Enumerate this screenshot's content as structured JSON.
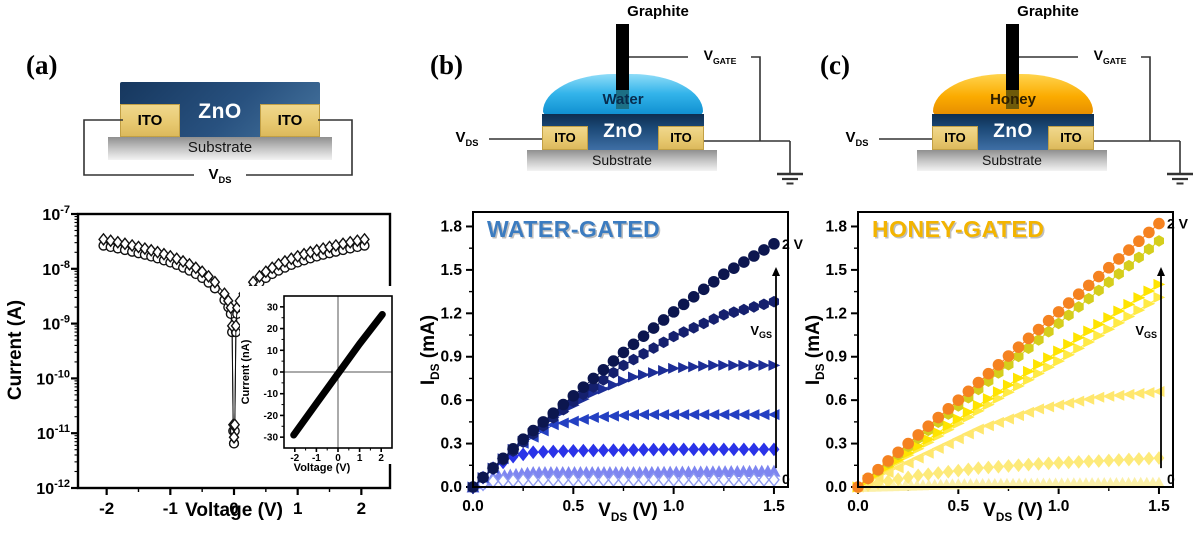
{
  "panels": {
    "a": {
      "label": "(a)",
      "schematic": {
        "zno": "ZnO",
        "ito_left": "ITO",
        "ito_right": "ITO",
        "substrate": "Substrate",
        "vds": {
          "pre": "V",
          "sub": "DS",
          "post": ""
        }
      },
      "axis": {
        "x": "Voltage (V)",
        "y": "Current (A)"
      },
      "inset_axis": {
        "x": "Voltage (V)",
        "y": "Current (nA)"
      }
    },
    "b": {
      "label": "(b)",
      "schematic": {
        "graphite": "Graphite",
        "liquid": "Water",
        "zno": "ZnO",
        "ito_left": "ITO",
        "ito_right": "ITO",
        "substrate": "Substrate",
        "vds": {
          "pre": "V",
          "sub": "DS",
          "post": ""
        },
        "vgate": {
          "pre": "V",
          "sub": "GATE",
          "post": ""
        }
      },
      "axis": {
        "x": {
          "pre": "V",
          "sub": "DS",
          "post": " (V)"
        },
        "y": {
          "pre": "I",
          "sub": "DS",
          "post": " (mA)"
        }
      }
    },
    "c": {
      "label": "(c)",
      "schematic": {
        "graphite": "Graphite",
        "liquid": "Honey",
        "zno": "ZnO",
        "ito_left": "ITO",
        "ito_right": "ITO",
        "substrate": "Substrate",
        "vds": {
          "pre": "V",
          "sub": "DS",
          "post": ""
        },
        "vgate": {
          "pre": "V",
          "sub": "GATE",
          "post": ""
        }
      },
      "axis": {
        "x": {
          "pre": "V",
          "sub": "DS",
          "post": " (V)"
        },
        "y": {
          "pre": "I",
          "sub": "DS",
          "post": " (mA)"
        }
      }
    }
  },
  "chart_data": {
    "a_main": {
      "type": "scatter",
      "xlabel": "Voltage (V)",
      "ylabel": "Current (A)",
      "x_ticks": [
        -2,
        -1,
        0,
        1,
        2
      ],
      "x_minor": [
        -1.5,
        -0.5,
        0.5,
        1.5
      ],
      "xlim": [
        -2.45,
        2.45
      ],
      "y_scale": "log",
      "y_decades": [
        -7,
        -8,
        -9,
        -10,
        -11,
        -12
      ],
      "symmetric_branch_V_vs_A": [
        [
          0.0,
          6.5e-12
        ],
        [
          0.012,
          1.1e-11
        ],
        [
          0.03,
          7e-10
        ],
        [
          0.05,
          1.5e-09
        ],
        [
          0.09,
          2e-09
        ],
        [
          0.15,
          2.7e-09
        ],
        [
          0.3,
          4.4e-09
        ],
        [
          0.5,
          6.8e-09
        ],
        [
          0.8,
          1.05e-08
        ],
        [
          1.2,
          1.55e-08
        ],
        [
          1.6,
          2.05e-08
        ],
        [
          2.05,
          2.65e-08
        ]
      ],
      "series": [
        {
          "name": "sweep-circles",
          "marker": "circle-open",
          "scale": 1.0
        },
        {
          "name": "sweep-diamonds",
          "marker": "diamond-open",
          "scale": 1.3
        }
      ]
    },
    "a_inset": {
      "type": "line",
      "xlabel": "Voltage (V)",
      "ylabel": "Current (nA)",
      "x_ticks": [
        -2,
        -1,
        0,
        1,
        2
      ],
      "x_minor": [
        -1.5,
        -0.5,
        0.5,
        1.5
      ],
      "y_ticks": [
        30,
        20,
        10,
        0,
        -10,
        -20,
        -30
      ],
      "y_minor": [
        25,
        15,
        5,
        -5,
        -15,
        -25
      ],
      "xlim": [
        -2.5,
        2.5
      ],
      "ylim": [
        -35,
        35
      ],
      "line_anchors": [
        [
          -2.05,
          -29
        ],
        [
          -1.0,
          -14.5
        ],
        [
          0.0,
          -0.8
        ],
        [
          1.0,
          13
        ],
        [
          2.05,
          26.5
        ]
      ],
      "line_width": 7,
      "line_color": "#000000"
    },
    "b": {
      "type": "scatter",
      "title": "WATER-GATED",
      "title_color": "#3c7cc0",
      "xlabel": "V_DS (V)",
      "ylabel": "I_DS (mA)",
      "x_ticks": [
        0,
        0.5,
        1,
        1.5
      ],
      "x_minor": [
        0.25,
        0.75,
        1.25
      ],
      "y_ticks": [
        0,
        0.3,
        0.6,
        0.9,
        1.2,
        1.5,
        1.8
      ],
      "y_minor": [
        0.15,
        0.45,
        0.75,
        1.05,
        1.35,
        1.65
      ],
      "xlim": [
        0,
        1.57
      ],
      "ylim": [
        0,
        1.9
      ],
      "series": [
        {
          "name": "vgs-low-band",
          "marker": "tri-up",
          "color": "#7e86f0",
          "step": 0.03,
          "size": 6.5,
          "anchors": [
            [
              0,
              0
            ],
            [
              0.1,
              0.07
            ],
            [
              0.3,
              0.1
            ],
            [
              0.8,
              0.1
            ],
            [
              1.5,
              0.11
            ]
          ]
        },
        {
          "name": "vgs-0",
          "marker": "diamond-open",
          "color": "#ffffff",
          "edge": "#8e9af2",
          "step": 0.05,
          "size": 5,
          "anchors": [
            [
              0,
              0
            ],
            [
              0.1,
              0.04
            ],
            [
              0.3,
              0.05
            ],
            [
              1.5,
              0.05
            ]
          ]
        },
        {
          "name": "vgs-step-3",
          "marker": "diamond",
          "color": "#2a33e8",
          "step": 0.05,
          "size": 5.5,
          "anchors": [
            [
              0,
              0
            ],
            [
              0.1,
              0.13
            ],
            [
              0.2,
              0.21
            ],
            [
              0.3,
              0.24
            ],
            [
              0.5,
              0.25
            ],
            [
              1.0,
              0.26
            ],
            [
              1.5,
              0.26
            ]
          ]
        },
        {
          "name": "vgs-step-4",
          "marker": "tri-left",
          "color": "#2440c2",
          "step": 0.05,
          "size": 5.5,
          "anchors": [
            [
              0,
              0
            ],
            [
              0.2,
              0.26
            ],
            [
              0.4,
              0.43
            ],
            [
              0.6,
              0.48
            ],
            [
              0.8,
              0.5
            ],
            [
              1.2,
              0.5
            ],
            [
              1.5,
              0.5
            ]
          ]
        },
        {
          "name": "vgs-step-5",
          "marker": "tri-right",
          "color": "#1c2d96",
          "step": 0.05,
          "size": 5.5,
          "anchors": [
            [
              0,
              0
            ],
            [
              0.2,
              0.26
            ],
            [
              0.4,
              0.48
            ],
            [
              0.6,
              0.65
            ],
            [
              0.8,
              0.76
            ],
            [
              1.0,
              0.82
            ],
            [
              1.2,
              0.84
            ],
            [
              1.5,
              0.84
            ]
          ]
        },
        {
          "name": "vgs-step-6",
          "marker": "hexagon",
          "color": "#15206e",
          "step": 0.05,
          "size": 5.8,
          "anchors": [
            [
              0,
              0
            ],
            [
              0.25,
              0.31
            ],
            [
              0.5,
              0.59
            ],
            [
              0.75,
              0.84
            ],
            [
              1.0,
              1.04
            ],
            [
              1.25,
              1.19
            ],
            [
              1.5,
              1.28
            ]
          ]
        },
        {
          "name": "vgs-2V",
          "marker": "circle",
          "color": "#0c164f",
          "step": 0.05,
          "size": 5.8,
          "anchors": [
            [
              0,
              0
            ],
            [
              0.25,
              0.33
            ],
            [
              0.5,
              0.63
            ],
            [
              0.75,
              0.93
            ],
            [
              1.0,
              1.21
            ],
            [
              1.25,
              1.47
            ],
            [
              1.5,
              1.68
            ]
          ]
        }
      ],
      "gate_arrow": {
        "top_label": "2 V",
        "bottom_label": "0",
        "label_pre": "V",
        "label_sub": "GS",
        "top_at": 1.68
      }
    },
    "c": {
      "type": "scatter",
      "title": "HONEY-GATED",
      "title_color": "#f3b400",
      "xlabel": "V_DS (V)",
      "ylabel": "I_DS (mA)",
      "x_ticks": [
        0,
        0.5,
        1,
        1.5
      ],
      "x_minor": [
        0.25,
        0.75,
        1.25
      ],
      "y_ticks": [
        0,
        0.3,
        0.6,
        0.9,
        1.2,
        1.5,
        1.8
      ],
      "y_minor": [
        0.15,
        0.45,
        0.75,
        1.05,
        1.35,
        1.65
      ],
      "xlim": [
        0,
        1.57
      ],
      "ylim": [
        0,
        1.9
      ],
      "series": [
        {
          "name": "vgs-0-band",
          "marker": "tri-up",
          "color": "#fbf0a8",
          "step": 0.03,
          "size": 6,
          "anchors": [
            [
              0,
              0
            ],
            [
              0.5,
              0.02
            ],
            [
              1.5,
              0.03
            ]
          ]
        },
        {
          "name": "vgs-step-2",
          "marker": "diamond",
          "color": "#fdea7a",
          "step": 0.05,
          "size": 5.5,
          "anchors": [
            [
              0,
              0
            ],
            [
              0.3,
              0.08
            ],
            [
              0.6,
              0.13
            ],
            [
              0.9,
              0.16
            ],
            [
              1.2,
              0.18
            ],
            [
              1.5,
              0.2
            ]
          ]
        },
        {
          "name": "vgs-step-3",
          "marker": "tri-left",
          "color": "#ffe76e",
          "step": 0.05,
          "size": 5.5,
          "anchors": [
            [
              0,
              0
            ],
            [
              0.3,
              0.2
            ],
            [
              0.6,
              0.4
            ],
            [
              0.9,
              0.54
            ],
            [
              1.2,
              0.62
            ],
            [
              1.5,
              0.66
            ]
          ]
        },
        {
          "name": "vgs-step-4",
          "marker": "tri-right",
          "color": "#ffea45",
          "step": 0.05,
          "size": 5.5,
          "anchors": [
            [
              0,
              0
            ],
            [
              0.5,
              0.44
            ],
            [
              1.0,
              0.87
            ],
            [
              1.5,
              1.31
            ]
          ]
        },
        {
          "name": "vgs-step-5",
          "marker": "tri-right",
          "color": "#ffe400",
          "step": 0.05,
          "size": 5.5,
          "anchors": [
            [
              0,
              0
            ],
            [
              0.5,
              0.47
            ],
            [
              1.0,
              0.94
            ],
            [
              1.5,
              1.4
            ]
          ]
        },
        {
          "name": "vgs-step-6",
          "marker": "hexagon",
          "color": "#d5ce1c",
          "step": 0.05,
          "size": 5.8,
          "anchors": [
            [
              0,
              0
            ],
            [
              0.5,
              0.56
            ],
            [
              1.0,
              1.13
            ],
            [
              1.5,
              1.7
            ]
          ]
        },
        {
          "name": "vgs-2V",
          "marker": "circle",
          "color": "#f58220",
          "step": 0.05,
          "size": 5.8,
          "anchors": [
            [
              0,
              0
            ],
            [
              0.5,
              0.6
            ],
            [
              1.0,
              1.21
            ],
            [
              1.5,
              1.82
            ]
          ]
        }
      ],
      "gate_arrow": {
        "top_label": "2 V",
        "bottom_label": "0",
        "label_pre": "V",
        "label_sub": "GS",
        "top_at": 1.82
      }
    }
  }
}
